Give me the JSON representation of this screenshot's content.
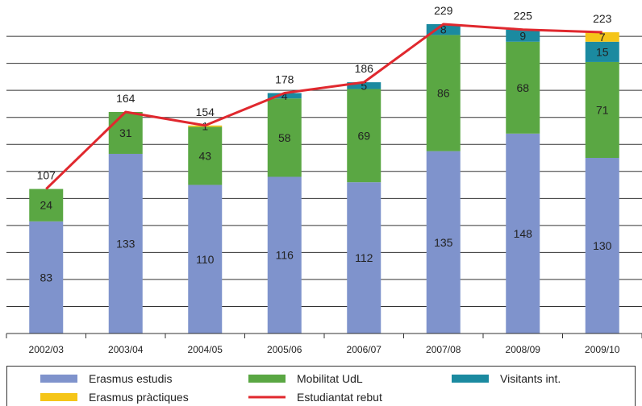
{
  "chart_data": {
    "type": "bar",
    "stacked": true,
    "categories": [
      "2002/03",
      "2003/04",
      "2004/05",
      "2005/06",
      "2006/07",
      "2007/08",
      "2008/09",
      "2009/10"
    ],
    "series": [
      {
        "name": "Erasmus estudis",
        "color": "#7f93cc",
        "values": [
          83,
          133,
          110,
          116,
          112,
          135,
          148,
          130
        ]
      },
      {
        "name": "Mobilitat UdL",
        "color": "#5aa743",
        "values": [
          24,
          31,
          43,
          58,
          69,
          86,
          68,
          71
        ]
      },
      {
        "name": "Visitants int.",
        "color": "#1b8aa0",
        "values": [
          0,
          0,
          0,
          4,
          5,
          8,
          9,
          15
        ]
      },
      {
        "name": "Erasmus pràctiques",
        "color": "#f5c518",
        "values": [
          0,
          0,
          1,
          0,
          0,
          0,
          0,
          7
        ]
      }
    ],
    "segment_labels": [
      [
        "83",
        "133",
        "110",
        "116",
        "112",
        "135",
        "148",
        "130"
      ],
      [
        "24",
        "31",
        "43",
        "58",
        "69",
        "86",
        "68",
        "71"
      ],
      [
        "",
        "",
        "",
        "4",
        "5",
        "8",
        "9",
        "15"
      ],
      [
        "",
        "",
        "1",
        "",
        "",
        "",
        "",
        "7"
      ]
    ],
    "line": {
      "name": "Estudiantat rebut",
      "color": "#e0282e",
      "values": [
        107,
        164,
        154,
        178,
        186,
        229,
        225,
        223
      ]
    },
    "ylim": [
      0,
      250
    ],
    "y_gridline_step": 20,
    "grid": true,
    "legend_position": "bottom",
    "title": "",
    "xlabel": "",
    "ylabel": ""
  }
}
